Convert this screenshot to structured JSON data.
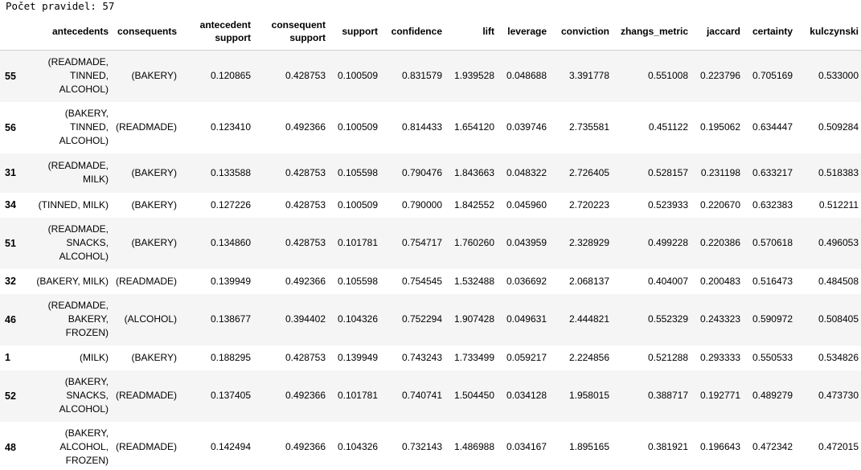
{
  "output": {
    "rule_count_line": "Počet pravidel: 57"
  },
  "table": {
    "columns": [
      "",
      "antecedents",
      "consequents",
      "antecedent support",
      "consequent support",
      "support",
      "confidence",
      "lift",
      "leverage",
      "conviction",
      "zhangs_metric",
      "jaccard",
      "certainty",
      "kulczynski"
    ],
    "rows": [
      {
        "index": "55",
        "antecedents": "(READMADE, TINNED, ALCOHOL)",
        "consequents": "(BAKERY)",
        "antecedent_support": "0.120865",
        "consequent_support": "0.428753",
        "support": "0.100509",
        "confidence": "0.831579",
        "lift": "1.939528",
        "leverage": "0.048688",
        "conviction": "3.391778",
        "zhangs_metric": "0.551008",
        "jaccard": "0.223796",
        "certainty": "0.705169",
        "kulczynski": "0.533000"
      },
      {
        "index": "56",
        "antecedents": "(BAKERY, TINNED, ALCOHOL)",
        "consequents": "(READMADE)",
        "antecedent_support": "0.123410",
        "consequent_support": "0.492366",
        "support": "0.100509",
        "confidence": "0.814433",
        "lift": "1.654120",
        "leverage": "0.039746",
        "conviction": "2.735581",
        "zhangs_metric": "0.451122",
        "jaccard": "0.195062",
        "certainty": "0.634447",
        "kulczynski": "0.509284"
      },
      {
        "index": "31",
        "antecedents": "(READMADE, MILK)",
        "consequents": "(BAKERY)",
        "antecedent_support": "0.133588",
        "consequent_support": "0.428753",
        "support": "0.105598",
        "confidence": "0.790476",
        "lift": "1.843663",
        "leverage": "0.048322",
        "conviction": "2.726405",
        "zhangs_metric": "0.528157",
        "jaccard": "0.231198",
        "certainty": "0.633217",
        "kulczynski": "0.518383"
      },
      {
        "index": "34",
        "antecedents": "(TINNED, MILK)",
        "consequents": "(BAKERY)",
        "antecedent_support": "0.127226",
        "consequent_support": "0.428753",
        "support": "0.100509",
        "confidence": "0.790000",
        "lift": "1.842552",
        "leverage": "0.045960",
        "conviction": "2.720223",
        "zhangs_metric": "0.523933",
        "jaccard": "0.220670",
        "certainty": "0.632383",
        "kulczynski": "0.512211"
      },
      {
        "index": "51",
        "antecedents": "(READMADE, SNACKS, ALCOHOL)",
        "consequents": "(BAKERY)",
        "antecedent_support": "0.134860",
        "consequent_support": "0.428753",
        "support": "0.101781",
        "confidence": "0.754717",
        "lift": "1.760260",
        "leverage": "0.043959",
        "conviction": "2.328929",
        "zhangs_metric": "0.499228",
        "jaccard": "0.220386",
        "certainty": "0.570618",
        "kulczynski": "0.496053"
      },
      {
        "index": "32",
        "antecedents": "(BAKERY, MILK)",
        "consequents": "(READMADE)",
        "antecedent_support": "0.139949",
        "consequent_support": "0.492366",
        "support": "0.105598",
        "confidence": "0.754545",
        "lift": "1.532488",
        "leverage": "0.036692",
        "conviction": "2.068137",
        "zhangs_metric": "0.404007",
        "jaccard": "0.200483",
        "certainty": "0.516473",
        "kulczynski": "0.484508"
      },
      {
        "index": "46",
        "antecedents": "(READMADE, BAKERY, FROZEN)",
        "consequents": "(ALCOHOL)",
        "antecedent_support": "0.138677",
        "consequent_support": "0.394402",
        "support": "0.104326",
        "confidence": "0.752294",
        "lift": "1.907428",
        "leverage": "0.049631",
        "conviction": "2.444821",
        "zhangs_metric": "0.552329",
        "jaccard": "0.243323",
        "certainty": "0.590972",
        "kulczynski": "0.508405"
      },
      {
        "index": "1",
        "antecedents": "(MILK)",
        "consequents": "(BAKERY)",
        "antecedent_support": "0.188295",
        "consequent_support": "0.428753",
        "support": "0.139949",
        "confidence": "0.743243",
        "lift": "1.733499",
        "leverage": "0.059217",
        "conviction": "2.224856",
        "zhangs_metric": "0.521288",
        "jaccard": "0.293333",
        "certainty": "0.550533",
        "kulczynski": "0.534826"
      },
      {
        "index": "52",
        "antecedents": "(BAKERY, SNACKS, ALCOHOL)",
        "consequents": "(READMADE)",
        "antecedent_support": "0.137405",
        "consequent_support": "0.492366",
        "support": "0.101781",
        "confidence": "0.740741",
        "lift": "1.504450",
        "leverage": "0.034128",
        "conviction": "1.958015",
        "zhangs_metric": "0.388717",
        "jaccard": "0.192771",
        "certainty": "0.489279",
        "kulczynski": "0.473730"
      },
      {
        "index": "48",
        "antecedents": "(BAKERY, ALCOHOL, FROZEN)",
        "consequents": "(READMADE)",
        "antecedent_support": "0.142494",
        "consequent_support": "0.492366",
        "support": "0.104326",
        "confidence": "0.732143",
        "lift": "1.486988",
        "leverage": "0.034167",
        "conviction": "1.895165",
        "zhangs_metric": "0.381921",
        "jaccard": "0.196643",
        "certainty": "0.472342",
        "kulczynski": "0.472015"
      }
    ]
  }
}
